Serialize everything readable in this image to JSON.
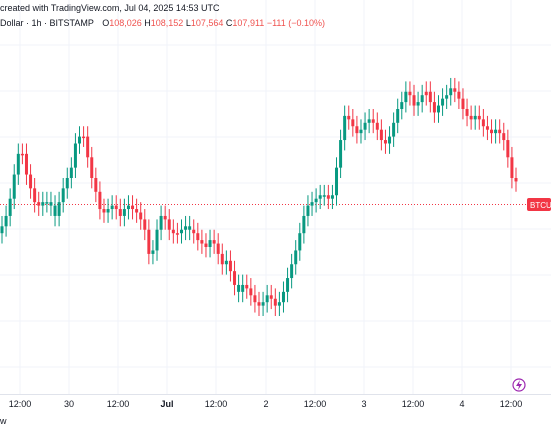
{
  "header": {
    "line1": "created with TradingView.com, Jul 04, 2025 14:53 UTC",
    "symbol": "Dollar · 1h · BITSTAMP",
    "open_label": "O",
    "open_value": "108,026",
    "high_label": "H",
    "high_value": "108,152",
    "low_label": "L",
    "low_value": "107,564",
    "close_label": "C",
    "close_value": "107,911",
    "change": "−111 (−0.10%)"
  },
  "price_tag": "BTCU",
  "bottom_text": "w",
  "colors": {
    "up": "#089981",
    "down": "#f23645",
    "price_line": "#f23645"
  },
  "icons": {
    "replay": "lightning-replay-icon"
  },
  "chart_data": {
    "type": "candlestick",
    "x_ticks": [
      "12:00",
      "30",
      "12:00",
      "Jul",
      "12:00",
      "2",
      "12:00",
      "3",
      "12:00",
      "4",
      "12:00"
    ],
    "last_price_line": true,
    "grid": true,
    "candles": [
      [
        "up",
        0.46
      ],
      [
        "up",
        0.49
      ],
      [
        "up",
        0.54
      ],
      [
        "up",
        0.61
      ],
      [
        "up",
        0.67
      ],
      [
        "down",
        0.67
      ],
      [
        "down",
        0.61
      ],
      [
        "down",
        0.57
      ],
      [
        "down",
        0.53
      ],
      [
        "down",
        0.52
      ],
      [
        "up",
        0.53
      ],
      [
        "up",
        0.53
      ],
      [
        "up",
        0.52
      ],
      [
        "up",
        0.49
      ],
      [
        "up",
        0.53
      ],
      [
        "up",
        0.57
      ],
      [
        "up",
        0.6
      ],
      [
        "up",
        0.63
      ],
      [
        "up",
        0.7
      ],
      [
        "up",
        0.72
      ],
      [
        "down",
        0.72
      ],
      [
        "down",
        0.66
      ],
      [
        "down",
        0.6
      ],
      [
        "down",
        0.56
      ],
      [
        "down",
        0.51
      ],
      [
        "down",
        0.5
      ],
      [
        "up",
        0.51
      ],
      [
        "up",
        0.52
      ],
      [
        "down",
        0.51
      ],
      [
        "down",
        0.49
      ],
      [
        "up",
        0.51
      ],
      [
        "up",
        0.52
      ],
      [
        "down",
        0.51
      ],
      [
        "down",
        0.5
      ],
      [
        "down",
        0.48
      ],
      [
        "down",
        0.45
      ],
      [
        "down",
        0.38
      ],
      [
        "up",
        0.39
      ],
      [
        "up",
        0.45
      ],
      [
        "up",
        0.49
      ],
      [
        "down",
        0.48
      ],
      [
        "down",
        0.45
      ],
      [
        "down",
        0.44
      ],
      [
        "down",
        0.44
      ],
      [
        "up",
        0.45
      ],
      [
        "up",
        0.46
      ],
      [
        "up",
        0.45
      ],
      [
        "down",
        0.44
      ],
      [
        "down",
        0.42
      ],
      [
        "down",
        0.41
      ],
      [
        "down",
        0.4
      ],
      [
        "up",
        0.42
      ],
      [
        "down",
        0.41
      ],
      [
        "down",
        0.38
      ],
      [
        "down",
        0.35
      ],
      [
        "up",
        0.36
      ],
      [
        "down",
        0.33
      ],
      [
        "down",
        0.29
      ],
      [
        "up",
        0.27
      ],
      [
        "up",
        0.29
      ],
      [
        "down",
        0.28
      ],
      [
        "down",
        0.26
      ],
      [
        "down",
        0.24
      ],
      [
        "down",
        0.23
      ],
      [
        "up",
        0.24
      ],
      [
        "up",
        0.26
      ],
      [
        "down",
        0.25
      ],
      [
        "down",
        0.23
      ],
      [
        "up",
        0.24
      ],
      [
        "up",
        0.27
      ],
      [
        "up",
        0.31
      ],
      [
        "up",
        0.35
      ],
      [
        "up",
        0.39
      ],
      [
        "up",
        0.44
      ],
      [
        "up",
        0.49
      ],
      [
        "up",
        0.52
      ],
      [
        "up",
        0.53
      ],
      [
        "up",
        0.54
      ],
      [
        "up",
        0.55
      ],
      [
        "up",
        0.55
      ],
      [
        "down",
        0.54
      ],
      [
        "up",
        0.55
      ],
      [
        "up",
        0.63
      ],
      [
        "up",
        0.71
      ],
      [
        "up",
        0.78
      ],
      [
        "down",
        0.77
      ],
      [
        "down",
        0.75
      ],
      [
        "down",
        0.73
      ],
      [
        "up",
        0.74
      ],
      [
        "up",
        0.76
      ],
      [
        "up",
        0.77
      ],
      [
        "down",
        0.76
      ],
      [
        "down",
        0.74
      ],
      [
        "down",
        0.71
      ],
      [
        "down",
        0.7
      ],
      [
        "up",
        0.72
      ],
      [
        "up",
        0.76
      ],
      [
        "up",
        0.8
      ],
      [
        "up",
        0.82
      ],
      [
        "up",
        0.85
      ],
      [
        "down",
        0.84
      ],
      [
        "down",
        0.81
      ],
      [
        "up",
        0.82
      ],
      [
        "up",
        0.84
      ],
      [
        "down",
        0.85
      ],
      [
        "down",
        0.82
      ],
      [
        "down",
        0.79
      ],
      [
        "up",
        0.81
      ],
      [
        "up",
        0.83
      ],
      [
        "up",
        0.84
      ],
      [
        "up",
        0.86
      ],
      [
        "down",
        0.85
      ],
      [
        "down",
        0.83
      ],
      [
        "down",
        0.8
      ],
      [
        "down",
        0.78
      ],
      [
        "down",
        0.77
      ],
      [
        "up",
        0.78
      ],
      [
        "down",
        0.77
      ],
      [
        "down",
        0.75
      ],
      [
        "down",
        0.74
      ],
      [
        "down",
        0.73
      ],
      [
        "up",
        0.74
      ],
      [
        "down",
        0.73
      ],
      [
        "down",
        0.71
      ],
      [
        "down",
        0.66
      ],
      [
        "down",
        0.6
      ],
      [
        "down",
        0.59
      ]
    ]
  }
}
